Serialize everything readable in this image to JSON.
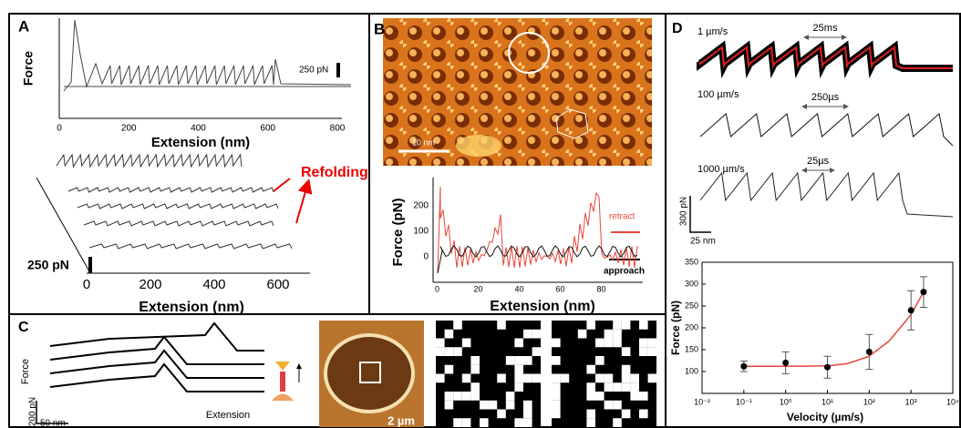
{
  "panels": {
    "A": {
      "label": "A",
      "top": {
        "y_label": "Force",
        "x_label": "Extension (nm)",
        "xticks": [
          0,
          200,
          400,
          600,
          800
        ],
        "scale_bar": "250 pN"
      },
      "bottom": {
        "annotation": "Refolding",
        "scale_bar": "250 pN",
        "x_label": "Extension (nm)",
        "xticks": [
          0,
          200,
          400,
          600
        ]
      }
    },
    "B": {
      "label": "B",
      "image_scale": "10 nm",
      "y_label": "Force (pN)",
      "x_label": "Extension (nm)",
      "yticks": [
        0,
        100,
        200
      ],
      "xticks": [
        0,
        20,
        40,
        60,
        80
      ],
      "legend": [
        "retract",
        "approach"
      ]
    },
    "C": {
      "label": "C",
      "y_label": "Force",
      "x_label": "Extension",
      "scale_y": "200 pN",
      "scale_x": "50 nm",
      "image_scale": "2 µm"
    },
    "D": {
      "label": "D",
      "traces": [
        {
          "speed": "1 µm/s",
          "time": "25ms"
        },
        {
          "speed": "100 µm/s",
          "time": "250µs"
        },
        {
          "speed": "1000 µm/s",
          "time": "25µs"
        }
      ],
      "scale_y": "300 pN",
      "scale_x": "25 nm",
      "chart_data": {
        "type": "scatter",
        "x_label": "Velocity (µm/s)",
        "y_label": "Force (pN)",
        "log_x": true,
        "x": [
          0.1,
          1,
          10,
          100,
          1000,
          2000
        ],
        "values": [
          112,
          120,
          110,
          145,
          240,
          282
        ],
        "errors": [
          12,
          25,
          25,
          40,
          45,
          35
        ],
        "color": "#000000",
        "fit": {
          "color": "#e8463c",
          "x": [
            0.1,
            1,
            10,
            30,
            100,
            300,
            1000,
            2000
          ],
          "values": [
            112,
            112,
            113,
            118,
            135,
            170,
            230,
            282
          ]
        },
        "xlim": [
          0.01,
          10000
        ],
        "ylim": [
          50,
          350
        ],
        "xticks": [
          {
            "value": 0.01,
            "label": "10⁻²"
          },
          {
            "value": 0.1,
            "label": "10⁻¹"
          },
          {
            "value": 1,
            "label": "10⁰"
          },
          {
            "value": 10,
            "label": "10¹"
          },
          {
            "value": 100,
            "label": "10²"
          },
          {
            "value": 1000,
            "label": "10³"
          },
          {
            "value": 10000,
            "label": "10⁴"
          }
        ],
        "yticks": [
          100,
          150,
          200,
          250,
          300,
          350
        ]
      }
    }
  }
}
